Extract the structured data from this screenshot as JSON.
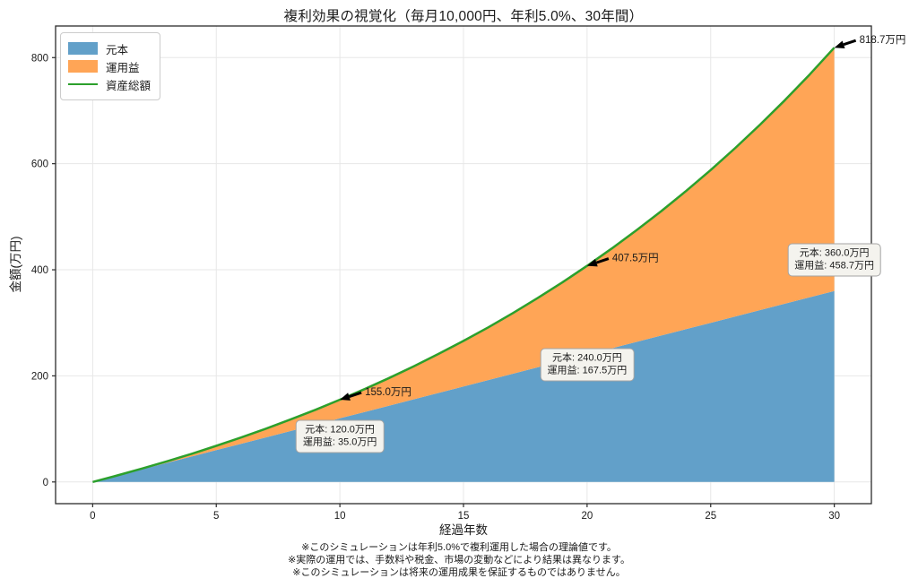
{
  "chart_data": {
    "type": "area",
    "title": "複利効果の視覚化（毎月10,000円、年利5.0%、30年間）",
    "xlabel": "経過年数",
    "ylabel": "金額(万円)",
    "x": [
      0,
      1,
      2,
      3,
      4,
      5,
      6,
      7,
      8,
      9,
      10,
      11,
      12,
      13,
      14,
      15,
      16,
      17,
      18,
      19,
      20,
      21,
      22,
      23,
      24,
      25,
      26,
      27,
      28,
      29,
      30
    ],
    "series": [
      {
        "name": "元本",
        "type": "area",
        "color": "#62a0c9",
        "values": [
          0,
          12,
          24,
          36,
          48,
          60,
          72,
          84,
          96,
          108,
          120,
          132,
          144,
          156,
          168,
          180,
          192,
          204,
          216,
          228,
          240,
          252,
          264,
          276,
          288,
          300,
          312,
          324,
          336,
          348,
          360
        ]
      },
      {
        "name": "運用益",
        "type": "area",
        "stacked_on": "元本",
        "color": "#ffa556",
        "values": [
          0,
          0.3,
          1.3,
          2.9,
          5.1,
          8.1,
          11.8,
          16.3,
          21.7,
          27.9,
          35.0,
          43.1,
          52.1,
          62.3,
          73.5,
          85.9,
          99.5,
          114.4,
          130.7,
          148.3,
          167.5,
          188.2,
          210.5,
          234.5,
          260.4,
          288.1,
          317.9,
          349.7,
          383.7,
          420.0,
          458.7
        ]
      },
      {
        "name": "資産総額",
        "type": "line",
        "color": "#2ca02c",
        "values": [
          0,
          12.3,
          25.3,
          38.9,
          53.1,
          68.1,
          83.8,
          100.3,
          117.7,
          135.9,
          155.0,
          175.1,
          196.1,
          218.3,
          241.5,
          265.9,
          291.5,
          318.4,
          346.7,
          376.3,
          407.5,
          440.2,
          474.5,
          510.5,
          548.4,
          588.1,
          629.9,
          673.7,
          719.7,
          768.0,
          818.7
        ]
      }
    ],
    "xticks": [
      0,
      5,
      10,
      15,
      20,
      25,
      30
    ],
    "yticks": [
      0,
      200,
      400,
      600,
      800
    ],
    "xlim": [
      -1.5,
      31.5
    ],
    "ylim": [
      -40.9,
      859.6
    ],
    "grid": true,
    "legend_position": "upper-left",
    "annotations": {
      "totals": [
        {
          "x": 10,
          "y": 155.0,
          "label": "155.0万円"
        },
        {
          "x": 20,
          "y": 407.5,
          "label": "407.5万円"
        },
        {
          "x": 30,
          "y": 818.7,
          "label": "818.7万円"
        }
      ],
      "breakdowns": [
        {
          "anchor_x": 10,
          "anchor_y": 86,
          "line1": "元本: 120.0万円",
          "line2": "運用益: 35.0万円"
        },
        {
          "anchor_x": 20,
          "anchor_y": 221,
          "line1": "元本: 240.0万円",
          "line2": "運用益: 167.5万円"
        },
        {
          "anchor_x": 30,
          "anchor_y": 419,
          "line1": "元本: 360.0万円",
          "line2": "運用益: 458.7万円"
        }
      ]
    },
    "colors": {
      "grid": "#e7e7e7",
      "frame": "#2b2b2b",
      "text": "#1a1a1a",
      "annotation_arrow": "#000000",
      "bubble_bg": "#f4f3ee",
      "bubble_border": "#a3a3a3"
    }
  },
  "footer": {
    "notes": [
      "※このシミュレーションは年利5.0%で複利運用した場合の理論値です。",
      "※実際の運用では、手数料や税金、市場の変動などにより結果は異なります。",
      "※このシミュレーションは将来の運用成果を保証するものではありません。"
    ]
  }
}
